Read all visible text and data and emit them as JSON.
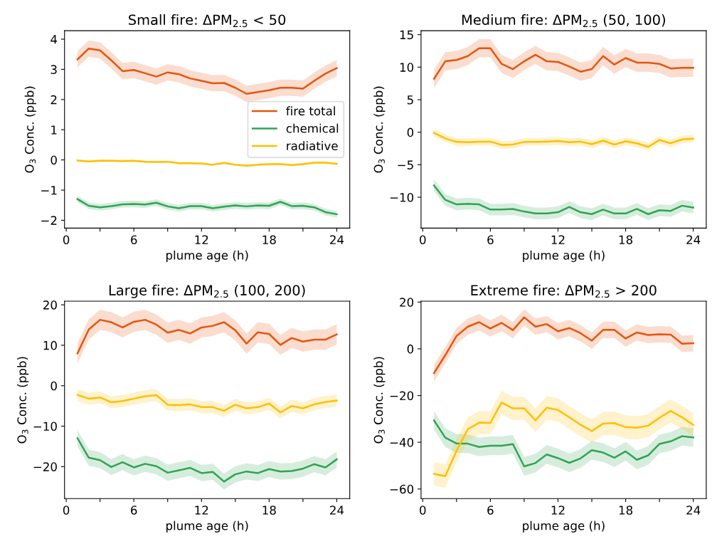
{
  "chart_data": [
    {
      "type": "line",
      "title": "Small fire: ΔPM$_{2.5}$ < 50",
      "xlabel": "plume age (h)",
      "ylabel": "O$_{3}$ Conc. (ppb)",
      "legend": "center right",
      "x": [
        1,
        2,
        3,
        4,
        5,
        6,
        7,
        8,
        9,
        10,
        11,
        12,
        13,
        14,
        15,
        16,
        17,
        18,
        19,
        20,
        21,
        22,
        23,
        24
      ],
      "xlim": [
        -0.15,
        25.15
      ],
      "xticks": [
        0,
        {
          "value": 3,
          "label": null
        },
        6,
        {
          "value": 9,
          "label": null
        },
        12,
        {
          "value": 15,
          "label": null
        },
        18,
        {
          "value": 21,
          "label": null
        },
        24
      ],
      "ylim": [
        -2.26,
        4.28
      ],
      "yticks": [
        {
          "value": -2,
          "label": "−2"
        },
        {
          "value": -1,
          "label": "−1"
        },
        0,
        1,
        2,
        3,
        4
      ],
      "series": [
        {
          "name": "fire total",
          "color": "#e6550d",
          "values": [
            3.33,
            3.69,
            3.63,
            3.3,
            2.94,
            2.98,
            2.87,
            2.76,
            2.9,
            2.84,
            2.7,
            2.62,
            2.54,
            2.55,
            2.39,
            2.19,
            2.25,
            2.31,
            2.39,
            2.39,
            2.36,
            2.62,
            2.86,
            3.04
          ],
          "lower": [
            3.06,
            3.42,
            3.36,
            3.03,
            2.67,
            2.71,
            2.6,
            2.49,
            2.63,
            2.57,
            2.43,
            2.35,
            2.27,
            2.28,
            2.12,
            1.92,
            1.98,
            2.04,
            2.12,
            2.12,
            2.09,
            2.35,
            2.59,
            2.77
          ],
          "upper": [
            3.6,
            3.96,
            3.9,
            3.57,
            3.21,
            3.25,
            3.14,
            3.03,
            3.17,
            3.11,
            2.97,
            2.89,
            2.81,
            2.82,
            2.66,
            2.46,
            2.52,
            2.58,
            2.66,
            2.66,
            2.63,
            2.89,
            3.13,
            3.31
          ]
        },
        {
          "name": "chemical",
          "color": "#31a354",
          "values": [
            -1.3,
            -1.52,
            -1.57,
            -1.53,
            -1.47,
            -1.46,
            -1.48,
            -1.42,
            -1.54,
            -1.6,
            -1.53,
            -1.53,
            -1.6,
            -1.55,
            -1.51,
            -1.54,
            -1.51,
            -1.52,
            -1.39,
            -1.53,
            -1.52,
            -1.57,
            -1.73,
            -1.8
          ],
          "lower": [
            -1.41,
            -1.63,
            -1.68,
            -1.64,
            -1.58,
            -1.57,
            -1.59,
            -1.53,
            -1.65,
            -1.71,
            -1.64,
            -1.64,
            -1.71,
            -1.66,
            -1.62,
            -1.65,
            -1.62,
            -1.63,
            -1.5,
            -1.64,
            -1.63,
            -1.68,
            -1.84,
            -1.91
          ],
          "upper": [
            -1.19,
            -1.41,
            -1.46,
            -1.42,
            -1.36,
            -1.35,
            -1.37,
            -1.31,
            -1.43,
            -1.49,
            -1.42,
            -1.42,
            -1.49,
            -1.44,
            -1.4,
            -1.43,
            -1.4,
            -1.41,
            -1.28,
            -1.42,
            -1.41,
            -1.46,
            -1.62,
            -1.69
          ]
        },
        {
          "name": "radiative",
          "color": "#ffbf00",
          "values": [
            -0.02,
            -0.05,
            -0.03,
            -0.03,
            -0.04,
            -0.03,
            -0.06,
            -0.07,
            -0.06,
            -0.11,
            -0.11,
            -0.12,
            -0.16,
            -0.1,
            -0.16,
            -0.19,
            -0.16,
            -0.14,
            -0.14,
            -0.17,
            -0.14,
            -0.09,
            -0.09,
            -0.13
          ],
          "lower": [
            -0.06,
            -0.09,
            -0.07,
            -0.07,
            -0.08,
            -0.07,
            -0.1,
            -0.11,
            -0.1,
            -0.15,
            -0.15,
            -0.16,
            -0.2,
            -0.14,
            -0.2,
            -0.23,
            -0.2,
            -0.18,
            -0.18,
            -0.21,
            -0.18,
            -0.13,
            -0.13,
            -0.17
          ],
          "upper": [
            0.02,
            -0.01,
            0.01,
            0.01,
            0,
            0.01,
            -0.02,
            -0.03,
            -0.02,
            -0.07,
            -0.07,
            -0.08,
            -0.12,
            -0.06,
            -0.12,
            -0.15,
            -0.12,
            -0.1,
            -0.1,
            -0.13,
            -0.1,
            -0.05,
            -0.05,
            -0.09
          ]
        }
      ]
    },
    {
      "type": "line",
      "title": "Medium fire: ΔPM$_{2.5}$ (50, 100)",
      "xlabel": "plume age (h)",
      "ylabel": "O$_{3}$ Conc. (ppb)",
      "x": [
        1,
        2,
        3,
        4,
        5,
        6,
        7,
        8,
        9,
        10,
        11,
        12,
        13,
        14,
        15,
        16,
        17,
        18,
        19,
        20,
        21,
        22,
        23,
        24
      ],
      "xlim": [
        -0.15,
        25.15
      ],
      "xticks": [
        0,
        {
          "value": 3,
          "label": null
        },
        6,
        {
          "value": 9,
          "label": null
        },
        12,
        {
          "value": 15,
          "label": null
        },
        18,
        {
          "value": 21,
          "label": null
        },
        24
      ],
      "ylim": [
        -14.75,
        15.6
      ],
      "yticks": [
        {
          "value": -10,
          "label": "−10"
        },
        {
          "value": -5,
          "label": "−5"
        },
        0,
        5,
        10,
        15
      ],
      "series": [
        {
          "color": "#e6550d",
          "values": [
            8.2,
            10.9,
            11.1,
            11.7,
            12.9,
            12.9,
            10.5,
            9.7,
            10.9,
            11.9,
            10.9,
            10.8,
            10.1,
            9.3,
            9.7,
            11.7,
            10.4,
            11.4,
            10.7,
            10.7,
            10.5,
            9.8,
            9.9,
            9.9
          ],
          "lower": [
            6.8,
            9.5,
            9.7,
            10.3,
            11.5,
            11.5,
            9.1,
            8.3,
            9.5,
            10.5,
            9.5,
            9.4,
            8.7,
            7.9,
            8.3,
            10.3,
            9,
            10,
            9.3,
            9.3,
            9.1,
            8.4,
            8.5,
            8.5
          ],
          "upper": [
            9.6,
            12.3,
            12.5,
            13.1,
            14.3,
            14.3,
            11.9,
            11.1,
            12.3,
            13.3,
            12.3,
            12.2,
            11.5,
            10.7,
            11.1,
            13.1,
            11.8,
            12.8,
            12.1,
            12.1,
            11.9,
            11.2,
            11.3,
            11.3
          ]
        },
        {
          "color": "#31a354",
          "values": [
            -8.2,
            -10.4,
            -11.1,
            -11.0,
            -11.1,
            -11.9,
            -11.9,
            -11.8,
            -12.2,
            -12.5,
            -12.5,
            -12.3,
            -11.5,
            -12.3,
            -12.6,
            -11.9,
            -12.5,
            -12.5,
            -11.8,
            -12.6,
            -12.0,
            -12.1,
            -11.3,
            -11.6
          ],
          "lower": [
            -9.1,
            -11.3,
            -12,
            -11.9,
            -12,
            -12.8,
            -12.8,
            -12.7,
            -13.1,
            -13.4,
            -13.4,
            -13.2,
            -12.4,
            -13.2,
            -13.5,
            -12.8,
            -13.4,
            -13.4,
            -12.7,
            -13.5,
            -12.9,
            -13,
            -12.2,
            -12.5
          ],
          "upper": [
            -7.3,
            -9.5,
            -10.2,
            -10.1,
            -10.2,
            -11,
            -11,
            -10.9,
            -11.3,
            -11.6,
            -11.6,
            -11.4,
            -10.6,
            -11.4,
            -11.7,
            -11,
            -11.6,
            -11.6,
            -10.9,
            -11.7,
            -11.1,
            -11.2,
            -10.4,
            -10.7
          ]
        },
        {
          "color": "#ffbf00",
          "values": [
            -0.1,
            -0.95,
            -1.5,
            -1.55,
            -1.45,
            -1.45,
            -1.95,
            -1.9,
            -1.5,
            -1.5,
            -1.45,
            -1.35,
            -1.55,
            -1.45,
            -1.85,
            -1.3,
            -1.9,
            -1.4,
            -1.7,
            -2.25,
            -1.2,
            -1.7,
            -1.1,
            -1.0
          ],
          "lower": [
            -0.7,
            -1.55,
            -2.1,
            -2.15,
            -2.05,
            -2.05,
            -2.55,
            -2.5,
            -2.1,
            -2.1,
            -2.05,
            -1.95,
            -2.15,
            -2.05,
            -2.45,
            -1.9,
            -2.5,
            -2.0,
            -2.3,
            -2.85,
            -1.8,
            -2.3,
            -1.7,
            -1.6
          ],
          "upper": [
            0.5,
            -0.35,
            -0.9,
            -0.95,
            -0.85,
            -0.85,
            -1.35,
            -1.3,
            -0.9,
            -0.9,
            -0.85,
            -0.75,
            -0.95,
            -0.85,
            -1.25,
            -0.7,
            -1.3,
            -0.8,
            -1.1,
            -1.65,
            -0.6,
            -1.1,
            -0.5,
            -0.4
          ]
        }
      ]
    },
    {
      "type": "line",
      "title": "Large fire: ΔPM$_{2.5}$ (100, 200)",
      "xlabel": "plume age (h)",
      "ylabel": "O$_{3}$ Conc. (ppb)",
      "x": [
        1,
        2,
        3,
        4,
        5,
        6,
        7,
        8,
        9,
        10,
        11,
        12,
        13,
        14,
        15,
        16,
        17,
        18,
        19,
        20,
        21,
        22,
        23,
        24
      ],
      "xlim": [
        -0.15,
        25.15
      ],
      "xticks": [
        0,
        {
          "value": 3,
          "label": null
        },
        6,
        {
          "value": 9,
          "label": null
        },
        12,
        {
          "value": 15,
          "label": null
        },
        18,
        {
          "value": 21,
          "label": null
        },
        24
      ],
      "ylim": [
        -27.9,
        20.9
      ],
      "yticks": [
        {
          "value": -20,
          "label": "−20"
        },
        {
          "value": -10,
          "label": "−10"
        },
        0,
        10,
        20
      ],
      "series": [
        {
          "color": "#e6550d",
          "values": [
            8.0,
            13.9,
            16.3,
            15.7,
            14.4,
            15.8,
            16.3,
            15.1,
            13.1,
            13.8,
            12.9,
            14.4,
            14.8,
            15.7,
            13.7,
            10.4,
            13.2,
            12.8,
            10.1,
            11.8,
            10.9,
            11.4,
            11.4,
            12.7
          ],
          "lower": [
            5.5,
            11.4,
            13.8,
            13.2,
            11.9,
            13.3,
            13.8,
            12.6,
            10.6,
            11.3,
            10.4,
            11.9,
            12.3,
            13.2,
            11.2,
            7.9,
            10.7,
            10.3,
            7.6,
            9.3,
            8.4,
            8.9,
            8.9,
            10.2
          ],
          "upper": [
            10.5,
            16.4,
            18.8,
            18.2,
            16.9,
            18.3,
            18.8,
            17.6,
            15.6,
            16.3,
            15.4,
            16.9,
            17.3,
            18.2,
            16.2,
            12.9,
            15.7,
            15.3,
            12.6,
            14.3,
            13.4,
            13.9,
            13.9,
            15.2
          ]
        },
        {
          "color": "#31a354",
          "values": [
            -13.0,
            -17.8,
            -18.4,
            -20.1,
            -18.9,
            -20.2,
            -19.3,
            -19.9,
            -21.5,
            -20.9,
            -20.3,
            -21.6,
            -21.3,
            -23.7,
            -21.9,
            -21.2,
            -21.6,
            -20.6,
            -21.2,
            -21.1,
            -20.5,
            -19.4,
            -20.2,
            -18.2
          ],
          "lower": [
            -15,
            -19.8,
            -20.4,
            -22.1,
            -20.9,
            -22.2,
            -21.3,
            -21.9,
            -23.5,
            -22.9,
            -22.3,
            -23.6,
            -23.3,
            -25.7,
            -23.9,
            -23.2,
            -23.6,
            -22.6,
            -23.2,
            -23.1,
            -22.5,
            -21.4,
            -22.2,
            -20.2
          ],
          "upper": [
            -11,
            -15.8,
            -16.4,
            -18.1,
            -16.9,
            -18.2,
            -17.3,
            -17.9,
            -19.5,
            -18.9,
            -18.3,
            -19.6,
            -19.3,
            -21.7,
            -19.9,
            -19.2,
            -19.6,
            -18.6,
            -19.2,
            -19.1,
            -18.5,
            -17.4,
            -18.2,
            -16.2
          ]
        },
        {
          "color": "#ffbf00",
          "values": [
            -2.3,
            -3.2,
            -2.9,
            -4.1,
            -3.8,
            -3.2,
            -2.6,
            -2.35,
            -4.7,
            -4.8,
            -4.6,
            -5.3,
            -5.3,
            -6.2,
            -4.7,
            -5.6,
            -5.3,
            -4.4,
            -6.6,
            -5.0,
            -5.6,
            -4.6,
            -4.0,
            -3.7
          ],
          "lower": [
            -3.8,
            -4.7,
            -4.4,
            -5.6,
            -5.3,
            -4.7,
            -4.1,
            -3.85,
            -6.2,
            -6.3,
            -6.1,
            -6.8,
            -6.8,
            -7.7,
            -6.2,
            -7.1,
            -6.8,
            -5.9,
            -8.1,
            -6.5,
            -7.1,
            -6.1,
            -5.5,
            -5.2
          ],
          "upper": [
            -0.8,
            -1.7,
            -1.4,
            -2.6,
            -2.3,
            -1.7,
            -1.1,
            -0.85,
            -3.2,
            -3.3,
            -3.1,
            -3.8,
            -3.8,
            -4.7,
            -3.2,
            -4.1,
            -3.8,
            -2.9,
            -5.1,
            -3.5,
            -4.1,
            -3.1,
            -2.5,
            -2.2
          ]
        }
      ]
    },
    {
      "type": "line",
      "title": "Extreme fire: ΔPM$_{2.5}$ > 200",
      "xlabel": "plume age (h)",
      "ylabel": "O$_{3}$ Conc. (ppb)",
      "x": [
        1,
        2,
        3,
        4,
        5,
        6,
        7,
        8,
        9,
        10,
        11,
        12,
        13,
        14,
        15,
        16,
        17,
        18,
        19,
        20,
        21,
        22,
        23,
        24
      ],
      "xlim": [
        -0.15,
        25.15
      ],
      "xticks": [
        0,
        {
          "value": 3,
          "label": null
        },
        6,
        {
          "value": 9,
          "label": null
        },
        12,
        {
          "value": 15,
          "label": null
        },
        18,
        {
          "value": 21,
          "label": null
        },
        24
      ],
      "ylim": [
        -64.1,
        20.4
      ],
      "yticks": [
        {
          "value": -60,
          "label": "−60"
        },
        {
          "value": -40,
          "label": "−40"
        },
        {
          "value": -20,
          "label": "−20"
        },
        0,
        20
      ],
      "series": [
        {
          "color": "#e6550d",
          "values": [
            -10.4,
            -2.7,
            5.5,
            9.5,
            11.4,
            8.7,
            11.1,
            8.0,
            13.5,
            9.5,
            10.6,
            7.5,
            8.9,
            6.7,
            3.5,
            8.1,
            8.1,
            4.4,
            7.0,
            5.9,
            6.2,
            6.1,
            2.2,
            2.4
          ],
          "lower": [
            -13.9,
            -6.2,
            2,
            6,
            7.9,
            5.2,
            7.6,
            4.5,
            10,
            6,
            7.1,
            4,
            5.4,
            3.2,
            0,
            4.6,
            4.6,
            0.9,
            3.5,
            2.4,
            2.7,
            2.6,
            -1.3,
            -1.1
          ],
          "upper": [
            -6.9,
            0.8,
            9,
            13,
            14.9,
            12.2,
            14.6,
            11.5,
            17,
            13,
            14.1,
            11,
            12.4,
            10.2,
            7,
            11.6,
            11.6,
            7.9,
            10.5,
            9.4,
            9.7,
            9.6,
            5.7,
            5.9
          ]
        },
        {
          "color": "#31a354",
          "values": [
            -30.6,
            -38.0,
            -40.5,
            -40.6,
            -42.0,
            -41.5,
            -41.5,
            -40.8,
            -50.3,
            -48.9,
            -45.2,
            -46.8,
            -48.8,
            -46.9,
            -43.4,
            -44.4,
            -46.6,
            -43.9,
            -47.5,
            -45.6,
            -40.7,
            -39.6,
            -37.4,
            -37.9
          ],
          "lower": [
            -34.6,
            -42,
            -44.5,
            -44.6,
            -46,
            -45.5,
            -45.5,
            -44.8,
            -54.3,
            -52.9,
            -49.2,
            -50.8,
            -52.8,
            -50.9,
            -47.4,
            -48.4,
            -50.6,
            -47.9,
            -51.5,
            -49.6,
            -44.7,
            -43.6,
            -41.4,
            -41.9
          ],
          "upper": [
            -26.6,
            -34,
            -36.5,
            -36.6,
            -38,
            -37.5,
            -37.5,
            -36.8,
            -46.3,
            -44.9,
            -41.2,
            -42.8,
            -44.8,
            -42.9,
            -39.4,
            -40.4,
            -42.6,
            -39.9,
            -43.5,
            -41.6,
            -36.7,
            -35.6,
            -33.4,
            -33.9
          ]
        },
        {
          "color": "#ffbf00",
          "values": [
            -53.5,
            -54.5,
            -43.6,
            -34.4,
            -31.6,
            -31.7,
            -23.0,
            -25.5,
            -25.5,
            -30.6,
            -25.2,
            -26.2,
            -29.3,
            -32.5,
            -35.2,
            -32.0,
            -31.8,
            -33.5,
            -33.8,
            -32.9,
            -29.5,
            -26.6,
            -29.3,
            -32.6
          ],
          "lower": [
            -58.5,
            -59.5,
            -48.6,
            -39.4,
            -36.6,
            -36.7,
            -28,
            -30.5,
            -30.5,
            -35.6,
            -30.2,
            -31.2,
            -34.3,
            -37.5,
            -40.2,
            -37,
            -36.8,
            -38.5,
            -38.8,
            -37.9,
            -34.5,
            -31.6,
            -34.3,
            -37.6
          ],
          "upper": [
            -48.5,
            -49.5,
            -38.6,
            -29.4,
            -26.6,
            -26.7,
            -18,
            -20.5,
            -20.5,
            -25.6,
            -20.2,
            -21.2,
            -24.3,
            -27.5,
            -30.2,
            -27,
            -26.8,
            -28.5,
            -28.8,
            -27.9,
            -24.5,
            -21.6,
            -24.3,
            -27.6
          ]
        }
      ]
    }
  ]
}
